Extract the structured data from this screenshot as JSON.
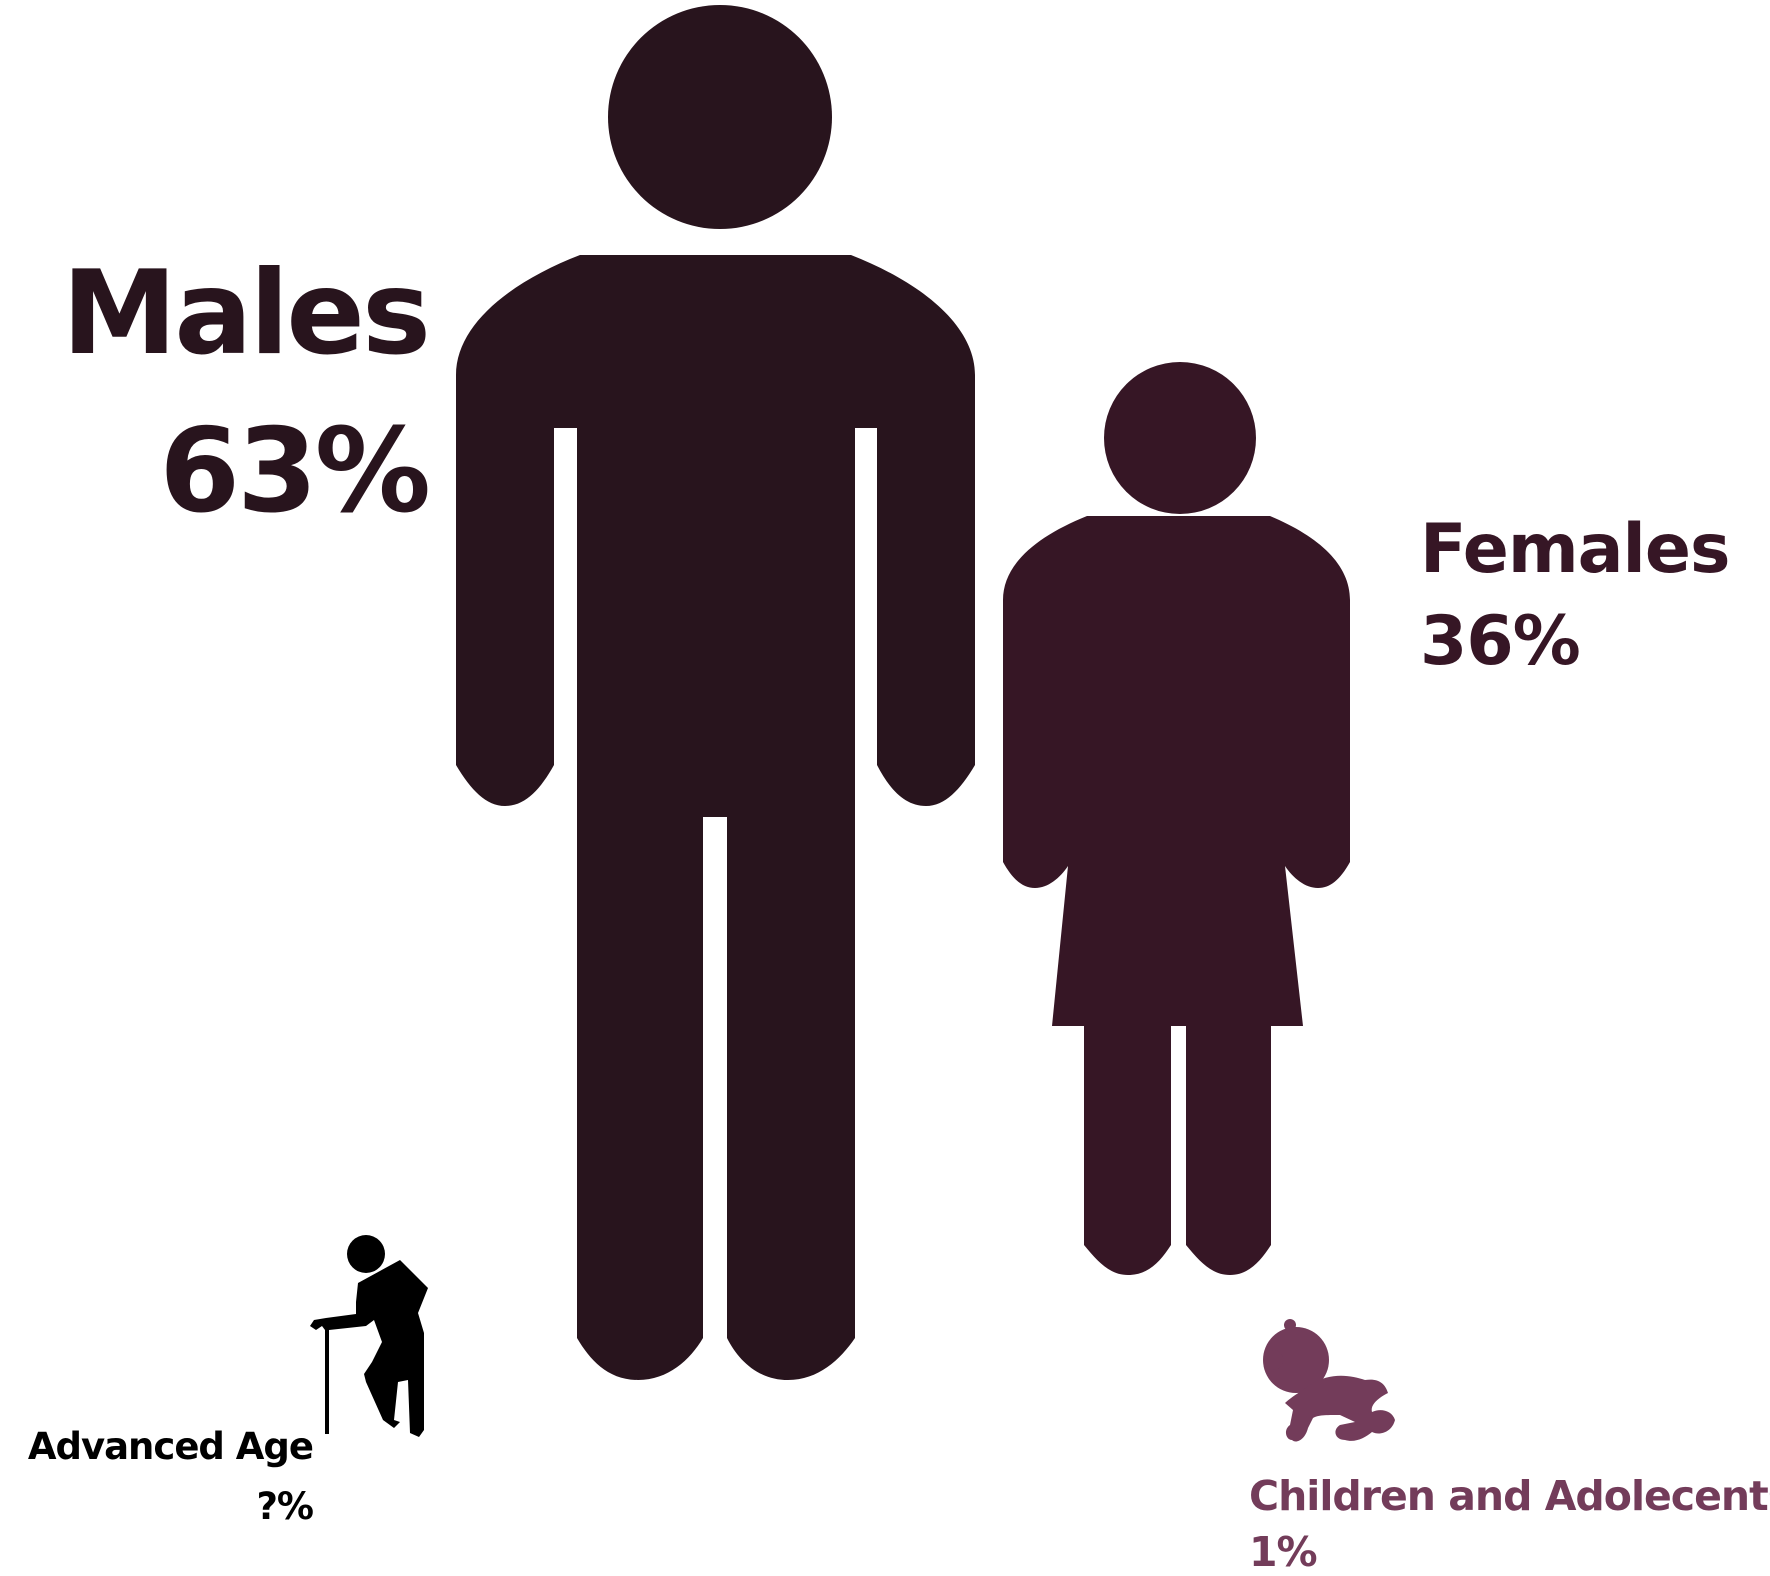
{
  "chart_data": {
    "type": "pictograph",
    "categories": [
      {
        "label": "Males",
        "value_label": "63%",
        "value": 63,
        "icon": "man-icon",
        "color": "#28141d"
      },
      {
        "label": "Females",
        "value_label": "36%",
        "value": 36,
        "icon": "woman-icon",
        "color": "#361625"
      },
      {
        "label": "Advanced Age",
        "value_label": "?%",
        "value": null,
        "icon": "elderly-person-with-cane-icon",
        "color": "#000000"
      },
      {
        "label": "Children and Adolecents",
        "value_label": "1%",
        "value": 1,
        "icon": "crawling-baby-icon",
        "color": "#733c5a"
      }
    ]
  }
}
